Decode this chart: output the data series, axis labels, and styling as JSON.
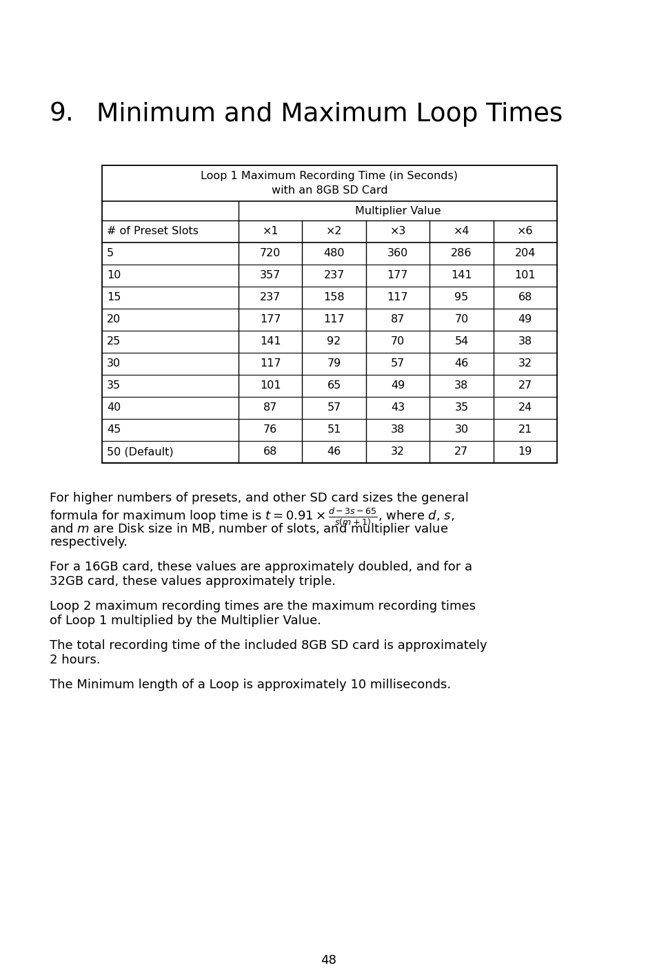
{
  "title_number": "9.",
  "title_text": "Minimum and Maximum Loop Times",
  "table_header_row1": "Loop 1 Maximum Recording Time (in Seconds)",
  "table_header_row2": "with an 8GB SD Card",
  "table_subheader": "Multiplier Value",
  "col_headers": [
    "# of Preset Slots",
    "×1",
    "×2",
    "×3",
    "×4",
    "×6"
  ],
  "rows": [
    [
      "5",
      "720",
      "480",
      "360",
      "286",
      "204"
    ],
    [
      "10",
      "357",
      "237",
      "177",
      "141",
      "101"
    ],
    [
      "15",
      "237",
      "158",
      "117",
      "95",
      "68"
    ],
    [
      "20",
      "177",
      "117",
      "87",
      "70",
      "49"
    ],
    [
      "25",
      "141",
      "92",
      "70",
      "54",
      "38"
    ],
    [
      "30",
      "117",
      "79",
      "57",
      "46",
      "32"
    ],
    [
      "35",
      "101",
      "65",
      "49",
      "38",
      "27"
    ],
    [
      "40",
      "87",
      "57",
      "43",
      "35",
      "24"
    ],
    [
      "45",
      "76",
      "51",
      "38",
      "30",
      "21"
    ],
    [
      "50 (Default)",
      "68",
      "46",
      "32",
      "27",
      "19"
    ]
  ],
  "para2": "For a 16GB card, these values are approximately doubled, and for a\n32GB card, these values approximately triple.",
  "para3": "Loop 2 maximum recording times are the maximum recording times\nof Loop 1 multiplied by the Multiplier Value.",
  "para4": "The total recording time of the included 8GB SD card is approximately\n2 hours.",
  "para5": "The Minimum length of a Loop is approximately 10 milliseconds.",
  "page_number": "48",
  "bg_color": "#ffffff",
  "text_color": "#000000"
}
